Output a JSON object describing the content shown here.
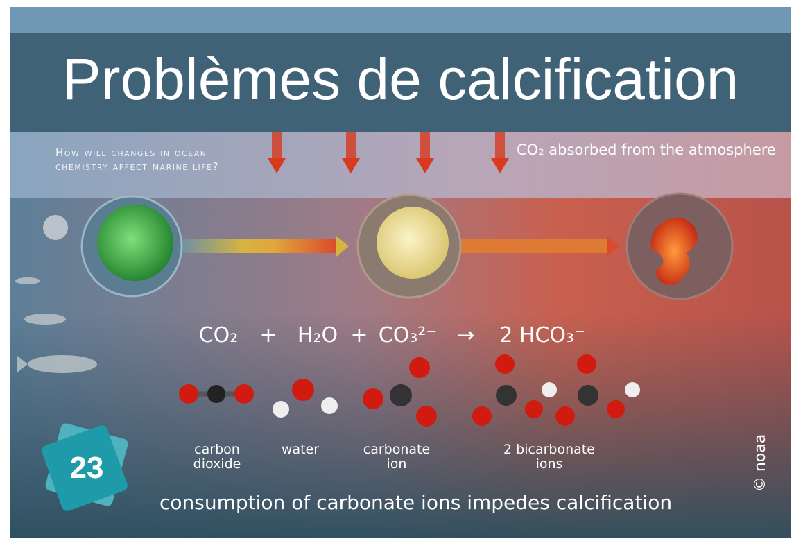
{
  "slide": {
    "title": "Problèmes de calcification",
    "question": "How will changes in ocean chemistry affect marine life?",
    "atmosphere_note": "CO₂ absorbed from the atmosphere",
    "equation": [
      "CO₂",
      "+",
      "H₂O",
      "+",
      "CO₃²⁻",
      "→",
      "2 HCO₃⁻"
    ],
    "molecules": [
      "carbon dioxide",
      "water",
      "carbonate ion",
      "2 bicarbonate ions"
    ],
    "badge": "23",
    "caption": "consumption of carbonate ions impedes calcification",
    "credit": "© noaa"
  }
}
